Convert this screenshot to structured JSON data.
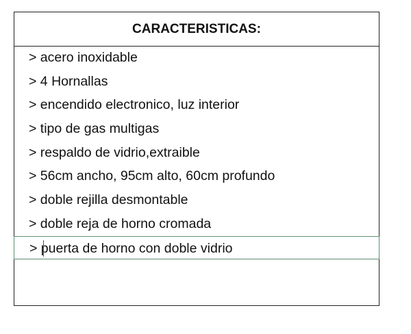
{
  "header": {
    "title": "CARACTERISTICAS:"
  },
  "rows": [
    "> acero inoxidable",
    "> 4 Hornallas",
    "> encendido electronico, luz interior",
    "> tipo de gas multigas",
    "> respaldo de vidrio,extraible",
    "> 56cm ancho, 95cm alto, 60cm profundo",
    "> doble rejilla desmontable",
    "> doble reja de horno cromada",
    "> puerta de horno con doble vidrio"
  ],
  "selected_row": 8,
  "colors": {
    "selection_border": "#5f8f70"
  }
}
